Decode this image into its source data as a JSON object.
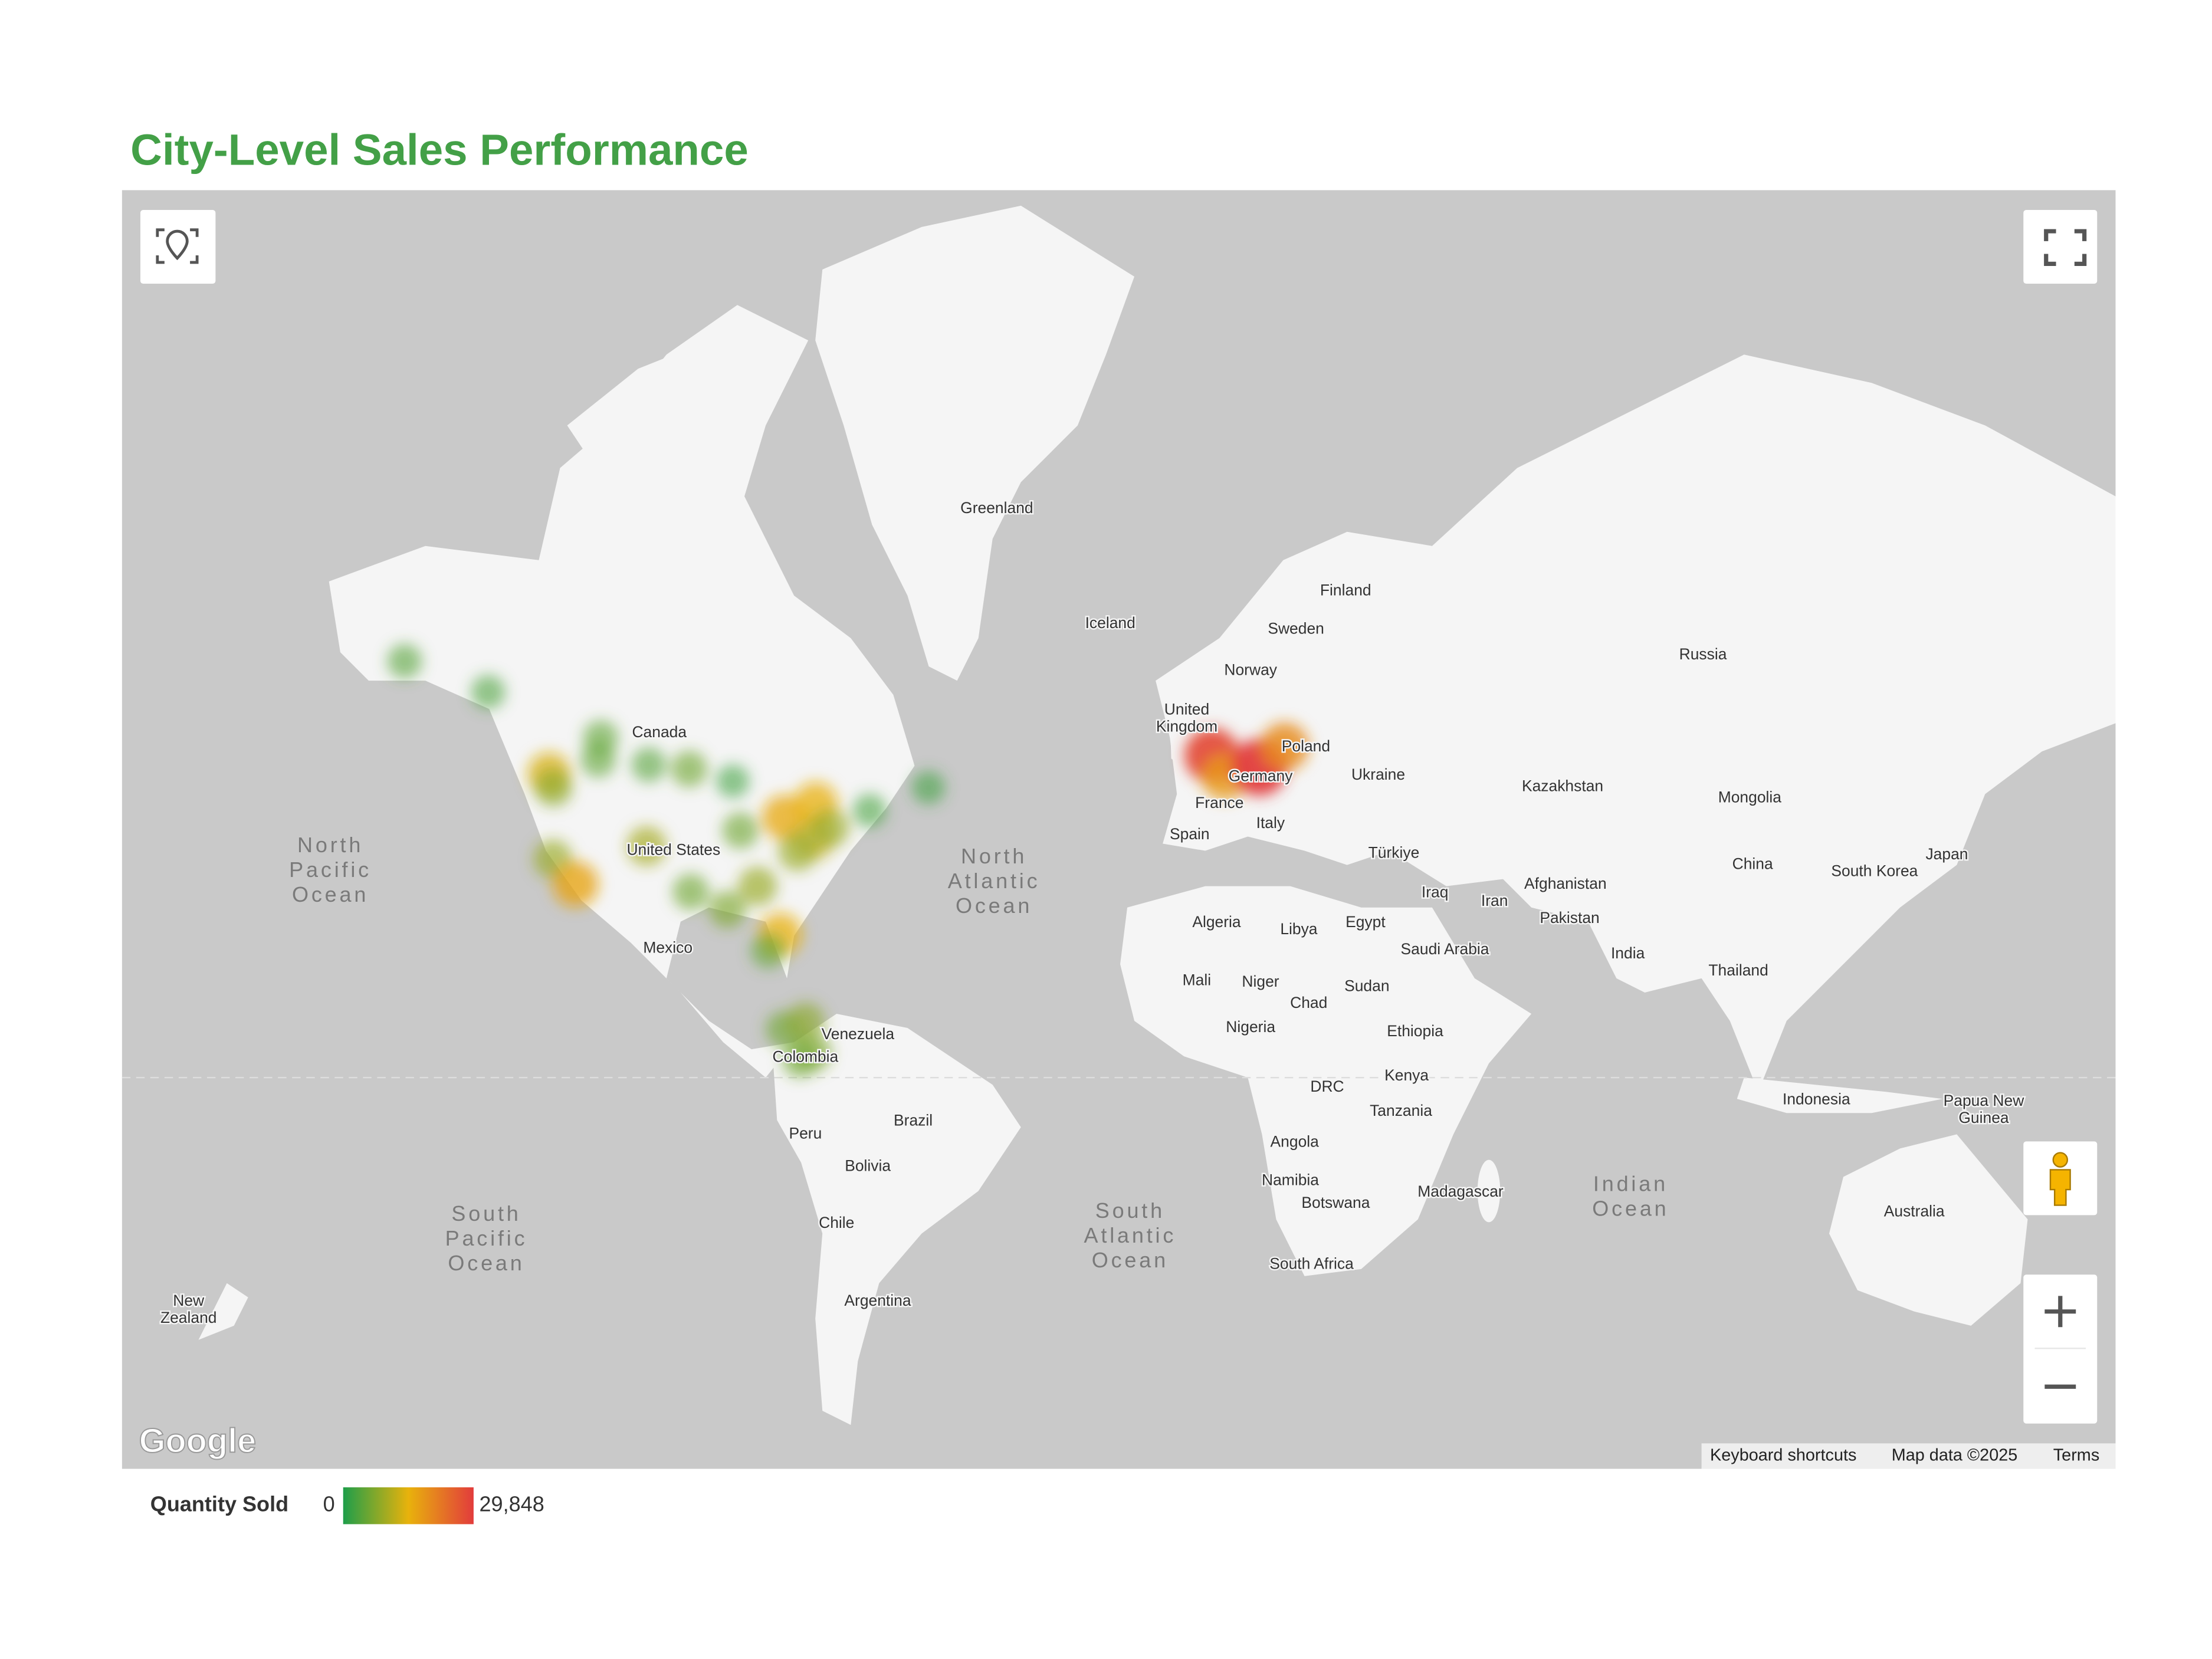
{
  "title": "City-Level Sales Performance",
  "map": {
    "labels": [
      [
        "Greenland"
      ],
      [
        "Iceland"
      ],
      [
        "Finland"
      ],
      [
        "Sweden"
      ],
      [
        "Norway"
      ],
      [
        "Russia"
      ],
      [
        "United",
        "Kingdom"
      ],
      [
        "Canada"
      ],
      [
        "United States"
      ],
      [
        "Mexico"
      ],
      [
        "Poland"
      ],
      [
        "Germany"
      ],
      [
        "France"
      ],
      [
        "Ukraine"
      ],
      [
        "Kazakhstan"
      ],
      [
        "Mongolia"
      ],
      [
        "Italy"
      ],
      [
        "Spain"
      ],
      [
        "Türkiye"
      ],
      [
        "China"
      ],
      [
        "South Korea"
      ],
      [
        "Japan"
      ],
      [
        "Iraq"
      ],
      [
        "Iran"
      ],
      [
        "Afghanistan"
      ],
      [
        "Pakistan"
      ],
      [
        "Algeria"
      ],
      [
        "Libya"
      ],
      [
        "Egypt"
      ],
      [
        "Saudi Arabia"
      ],
      [
        "India"
      ],
      [
        "Thailand"
      ],
      [
        "Mali"
      ],
      [
        "Niger"
      ],
      [
        "Sudan"
      ],
      [
        "Chad"
      ],
      [
        "Nigeria"
      ],
      [
        "Ethiopia"
      ],
      [
        "Venezuela"
      ],
      [
        "Colombia"
      ],
      [
        "Kenya"
      ],
      [
        "DRC"
      ],
      [
        "Tanzania"
      ],
      [
        "Indonesia"
      ],
      [
        "Papua New",
        "Guinea"
      ],
      [
        "Brazil"
      ],
      [
        "Peru"
      ],
      [
        "Bolivia"
      ],
      [
        "Angola"
      ],
      [
        "Namibia"
      ],
      [
        "Madagascar"
      ],
      [
        "Botswana"
      ],
      [
        "Australia"
      ],
      [
        "Chile"
      ],
      [
        "South Africa"
      ],
      [
        "Argentina"
      ],
      [
        "New",
        "Zealand"
      ]
    ],
    "oceans": [
      [
        "North",
        "Pacific",
        "Ocean"
      ],
      [
        "North",
        "Atlantic",
        "Ocean"
      ],
      [
        "South",
        "Pacific",
        "Ocean"
      ],
      [
        "South",
        "Atlantic",
        "Ocean"
      ],
      [
        "Indian",
        "Ocean"
      ]
    ],
    "logo": "Google",
    "attribution": [
      "Keyboard shortcuts",
      "Map data ©2025",
      "Terms"
    ],
    "points": [
      {
        "lon": -0.1,
        "lat": 51.5,
        "value": 28000
      },
      {
        "lon": 2.3,
        "lat": 48.9,
        "value": 18000
      },
      {
        "lon": 8.7,
        "lat": 50.1,
        "value": 29848
      },
      {
        "lon": 13.4,
        "lat": 52.5,
        "value": 20000
      },
      {
        "lon": -149.9,
        "lat": 61.2,
        "value": 4000
      },
      {
        "lon": -134.4,
        "lat": 58.3,
        "value": 3500
      },
      {
        "lon": -123.1,
        "lat": 49.3,
        "value": 14000
      },
      {
        "lon": -114.0,
        "lat": 51.0,
        "value": 5000
      },
      {
        "lon": -113.5,
        "lat": 53.5,
        "value": 5000
      },
      {
        "lon": -104.6,
        "lat": 50.4,
        "value": 4000
      },
      {
        "lon": -97.1,
        "lat": 49.9,
        "value": 6000
      },
      {
        "lon": -89.0,
        "lat": 48.4,
        "value": 2500
      },
      {
        "lon": -79.4,
        "lat": 43.7,
        "value": 16000
      },
      {
        "lon": -73.6,
        "lat": 45.5,
        "value": 15000
      },
      {
        "lon": -74.0,
        "lat": 40.7,
        "value": 12000
      },
      {
        "lon": -71.0,
        "lat": 42.3,
        "value": 9000
      },
      {
        "lon": -63.6,
        "lat": 44.6,
        "value": 3000
      },
      {
        "lon": -52.7,
        "lat": 47.6,
        "value": 2500
      },
      {
        "lon": -122.3,
        "lat": 47.6,
        "value": 8000
      },
      {
        "lon": -122.4,
        "lat": 37.8,
        "value": 9000
      },
      {
        "lon": -118.2,
        "lat": 34.0,
        "value": 17000
      },
      {
        "lon": -105.0,
        "lat": 39.7,
        "value": 10000
      },
      {
        "lon": -96.8,
        "lat": 32.8,
        "value": 6000
      },
      {
        "lon": -87.6,
        "lat": 41.9,
        "value": 6000
      },
      {
        "lon": -84.4,
        "lat": 33.7,
        "value": 9000
      },
      {
        "lon": -77.0,
        "lat": 38.9,
        "value": 9000
      },
      {
        "lon": -90.0,
        "lat": 30.0,
        "value": 7000
      },
      {
        "lon": -80.2,
        "lat": 25.8,
        "value": 15000
      },
      {
        "lon": -82.4,
        "lat": 23.1,
        "value": 5000
      },
      {
        "lon": -79.5,
        "lat": 9.0,
        "value": 6000
      },
      {
        "lon": -75.5,
        "lat": 10.4,
        "value": 8000
      },
      {
        "lon": -74.1,
        "lat": 4.7,
        "value": 7000
      },
      {
        "lon": -76.5,
        "lat": 3.4,
        "value": 6000
      }
    ]
  },
  "legend": {
    "title": "Quantity Sold",
    "min": 0,
    "max": {
      "value": 29848,
      "label": "29,848"
    },
    "colors": [
      "#1e9e4a",
      "#e8b20c",
      "#e23c3c"
    ]
  }
}
